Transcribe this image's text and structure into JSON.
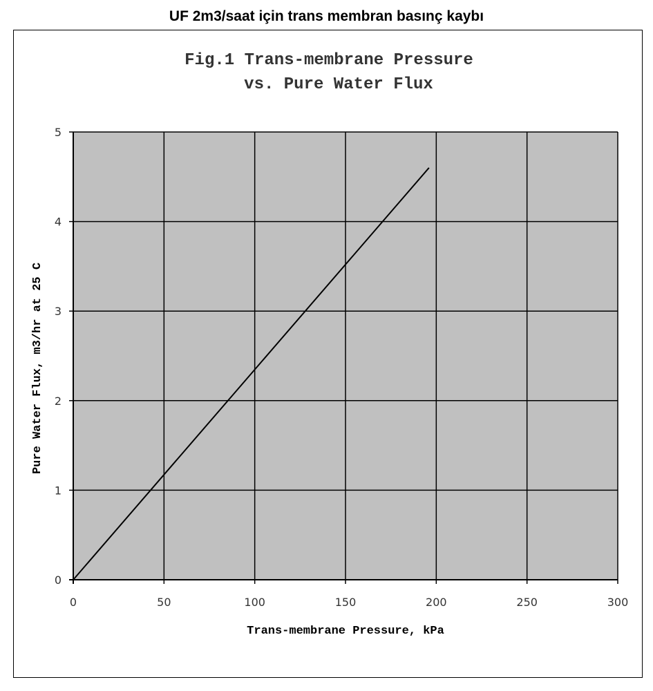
{
  "page": {
    "heading": "UF 2m3/saat için trans membran basınç kaybı"
  },
  "chart_data": {
    "type": "line",
    "title_lines": [
      "Fig.1 Trans-membrane Pressure",
      "vs. Pure Water Flux"
    ],
    "xlabel": "Trans-membrane Pressure, kPa",
    "ylabel": "Pure Water Flux, m3/hr at 25 C",
    "xlim": [
      0,
      300
    ],
    "ylim": [
      0,
      5
    ],
    "x_ticks": [
      0,
      50,
      100,
      150,
      200,
      250,
      300
    ],
    "y_ticks": [
      0,
      1,
      2,
      3,
      4,
      5
    ],
    "grid": true,
    "plot_background": "#c0c0c0",
    "series": [
      {
        "x": [
          0,
          196
        ],
        "y": [
          0,
          4.6
        ],
        "color": "#000000"
      }
    ]
  }
}
